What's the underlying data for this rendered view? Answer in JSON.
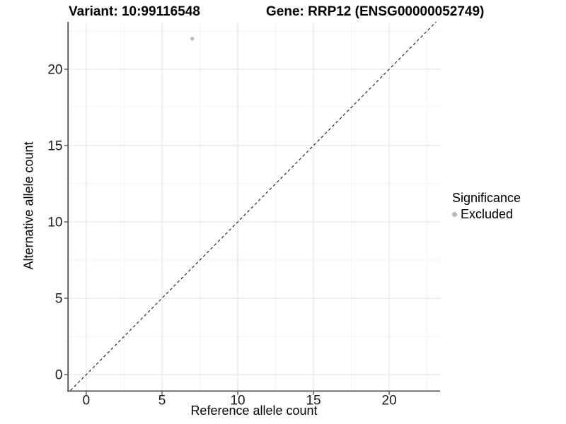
{
  "chart_data": {
    "type": "scatter",
    "title_variant": "Variant: 10:99116548",
    "title_gene": "Gene: RRP12 (ENSG00000052749)",
    "xlabel": "Reference allele count",
    "ylabel": "Alternative allele count",
    "xlim": [
      -1.19,
      23.36
    ],
    "ylim": [
      -1.04,
      23.1
    ],
    "x_major_ticks": [
      0,
      5,
      10,
      15,
      20
    ],
    "y_major_ticks": [
      0,
      5,
      10,
      15,
      20
    ],
    "x_minor_ticks": [
      2.5,
      7.5,
      12.5,
      17.5,
      22.5
    ],
    "y_minor_ticks": [
      2.5,
      7.5,
      12.5,
      17.5,
      22.5
    ],
    "grid": "major+minor",
    "series": [
      {
        "name": "Excluded",
        "color": "#b9b9b9",
        "points": [
          {
            "x": 7,
            "y": 22
          }
        ]
      }
    ],
    "reference_line": {
      "kind": "identity y=x",
      "style": "dashed",
      "color": "#1a1a1a"
    },
    "legend": {
      "title": "Significance",
      "position": "right",
      "items": [
        {
          "label": "Excluded",
          "color": "#b9b9b9",
          "marker": "circle"
        }
      ]
    }
  },
  "colors": {
    "background": "#ffffff",
    "grid_major": "#e3e3e3",
    "grid_minor": "#f0f0f0",
    "axis_line": "#4d4d4d",
    "tick_mark": "#333333",
    "tick_text": "#191919",
    "point": "#b9b9b9"
  }
}
